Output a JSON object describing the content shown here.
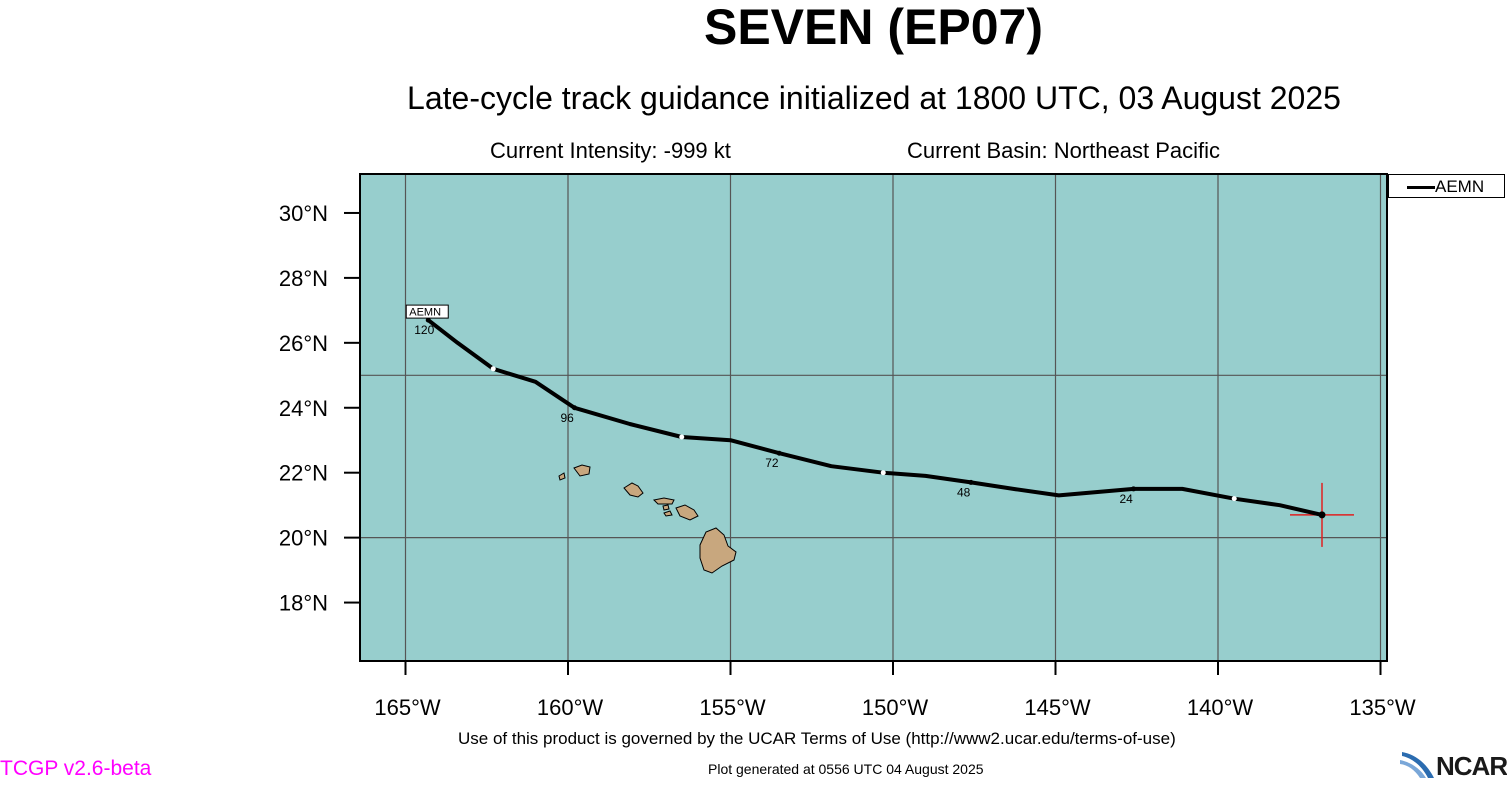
{
  "header": {
    "title": "SEVEN (EP07)",
    "subtitle": "Late-cycle track guidance initialized at 1800 UTC, 03 August 2025",
    "intensity": "Current Intensity: -999 kt",
    "basin": "Current Basin: Northeast Pacific"
  },
  "colors": {
    "ocean": "#97cecd",
    "land": "#c8a77e",
    "track": "#000000",
    "current_position_cross": "#e02020",
    "version_text": "#ff00ff"
  },
  "chart_data": {
    "type": "line",
    "xlim": [
      -166.4,
      -134.8
    ],
    "ylim": [
      16.2,
      31.2
    ],
    "x_ticks": [
      -165,
      -160,
      -155,
      -150,
      -145,
      -140,
      -135
    ],
    "x_tick_labels": [
      "165°W",
      "160°W",
      "155°W",
      "150°W",
      "145°W",
      "140°W",
      "135°W"
    ],
    "y_ticks": [
      18,
      20,
      22,
      24,
      26,
      28,
      30
    ],
    "y_tick_labels": [
      "18°N",
      "20°N",
      "22°N",
      "24°N",
      "26°N",
      "28°N",
      "30°N"
    ],
    "grid_x": [
      -165,
      -160,
      -155,
      -150,
      -145,
      -140,
      -135
    ],
    "grid_y": [
      20,
      25
    ],
    "legend": {
      "position": "top-right",
      "entries": [
        "AEMN"
      ]
    },
    "current_position": {
      "lon": -136.8,
      "lat": 20.7
    },
    "series": [
      {
        "name": "AEMN",
        "track": [
          {
            "lon": -136.8,
            "lat": 20.7,
            "hour": 0
          },
          {
            "lon": -138.1,
            "lat": 21.0,
            "hour": 6
          },
          {
            "lon": -139.5,
            "lat": 21.2,
            "hour": 12
          },
          {
            "lon": -141.1,
            "lat": 21.5,
            "hour": 18
          },
          {
            "lon": -142.6,
            "lat": 21.5,
            "hour": 24
          },
          {
            "lon": -144.9,
            "lat": 21.3,
            "hour": 30
          },
          {
            "lon": -146.3,
            "lat": 21.5,
            "hour": 36
          },
          {
            "lon": -147.6,
            "lat": 21.7,
            "hour": 48
          },
          {
            "lon": -149.0,
            "lat": 21.9,
            "hour": 54
          },
          {
            "lon": -150.3,
            "lat": 22.0,
            "hour": 60
          },
          {
            "lon": -151.9,
            "lat": 22.2,
            "hour": 66
          },
          {
            "lon": -153.5,
            "lat": 22.6,
            "hour": 72
          },
          {
            "lon": -155.0,
            "lat": 23.0,
            "hour": 78
          },
          {
            "lon": -156.5,
            "lat": 23.1,
            "hour": 84
          },
          {
            "lon": -158.1,
            "lat": 23.5,
            "hour": 90
          },
          {
            "lon": -159.8,
            "lat": 24.0,
            "hour": 96
          },
          {
            "lon": -161.0,
            "lat": 24.8,
            "hour": 102
          },
          {
            "lon": -162.3,
            "lat": 25.2,
            "hour": 108
          },
          {
            "lon": -163.4,
            "lat": 26.0,
            "hour": 114
          },
          {
            "lon": -164.3,
            "lat": 26.7,
            "hour": 120
          }
        ],
        "marked_hours": [
          12,
          24,
          48,
          60,
          72,
          84,
          96,
          108,
          120
        ],
        "labeled_hours": [
          {
            "hour": 24,
            "label": "24"
          },
          {
            "hour": 48,
            "label": "48"
          },
          {
            "hour": 72,
            "label": "72"
          },
          {
            "hour": 96,
            "label": "96"
          },
          {
            "hour": 120,
            "label": "120"
          }
        ],
        "end_label": "AEMN"
      }
    ]
  },
  "footer": {
    "terms": "Use of this product is governed by the UCAR Terms of Use (http://www2.ucar.edu/terms-of-use)",
    "generated": "Plot generated at 0556 UTC   04 August 2025",
    "version": "TCGP v2.6-beta",
    "logo_text": "NCAR"
  }
}
